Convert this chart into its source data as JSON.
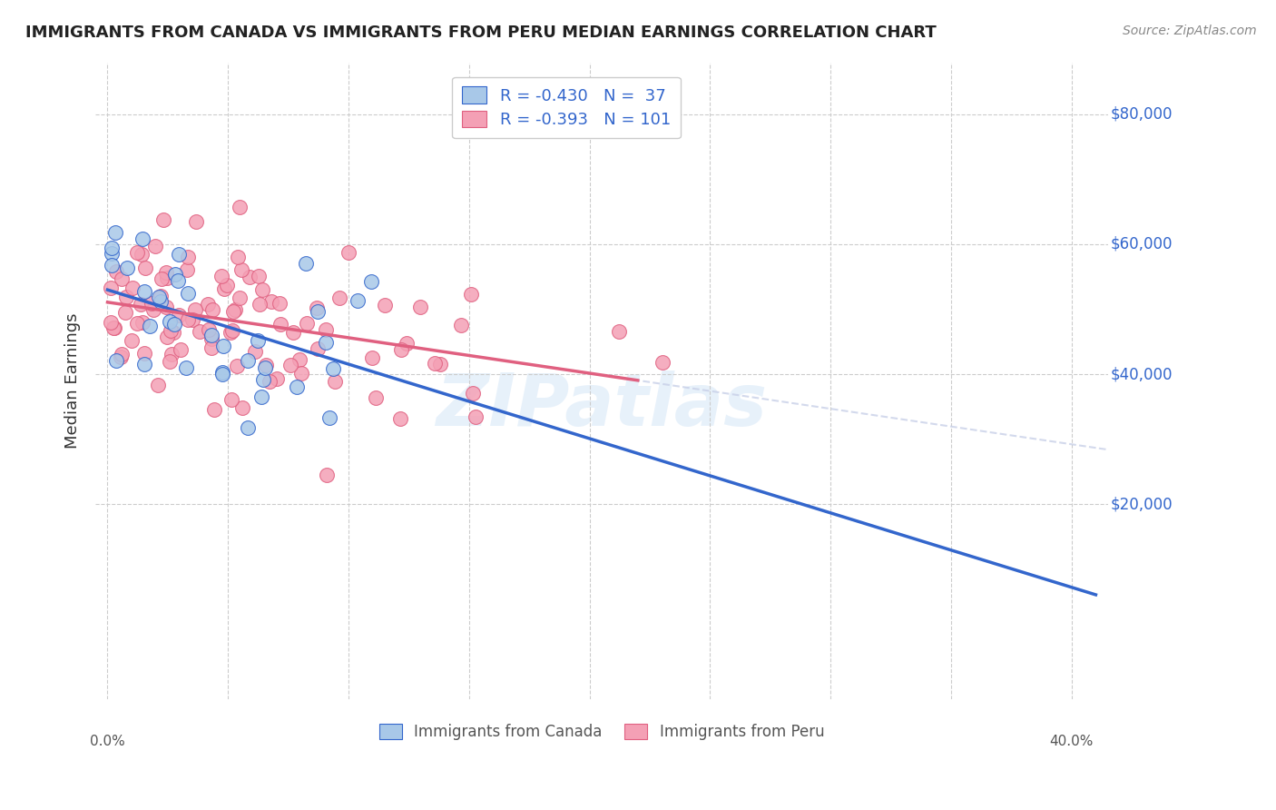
{
  "title": "IMMIGRANTS FROM CANADA VS IMMIGRANTS FROM PERU MEDIAN EARNINGS CORRELATION CHART",
  "source": "Source: ZipAtlas.com",
  "ylabel": "Median Earnings",
  "legend_canada": "R = -0.430   N =  37",
  "legend_peru": "R = -0.393   N = 101",
  "color_canada": "#A8C8E8",
  "color_peru": "#F4A0B5",
  "line_canada": "#3366CC",
  "line_peru": "#E06080",
  "line_extend_color": "#C8D0E8"
}
